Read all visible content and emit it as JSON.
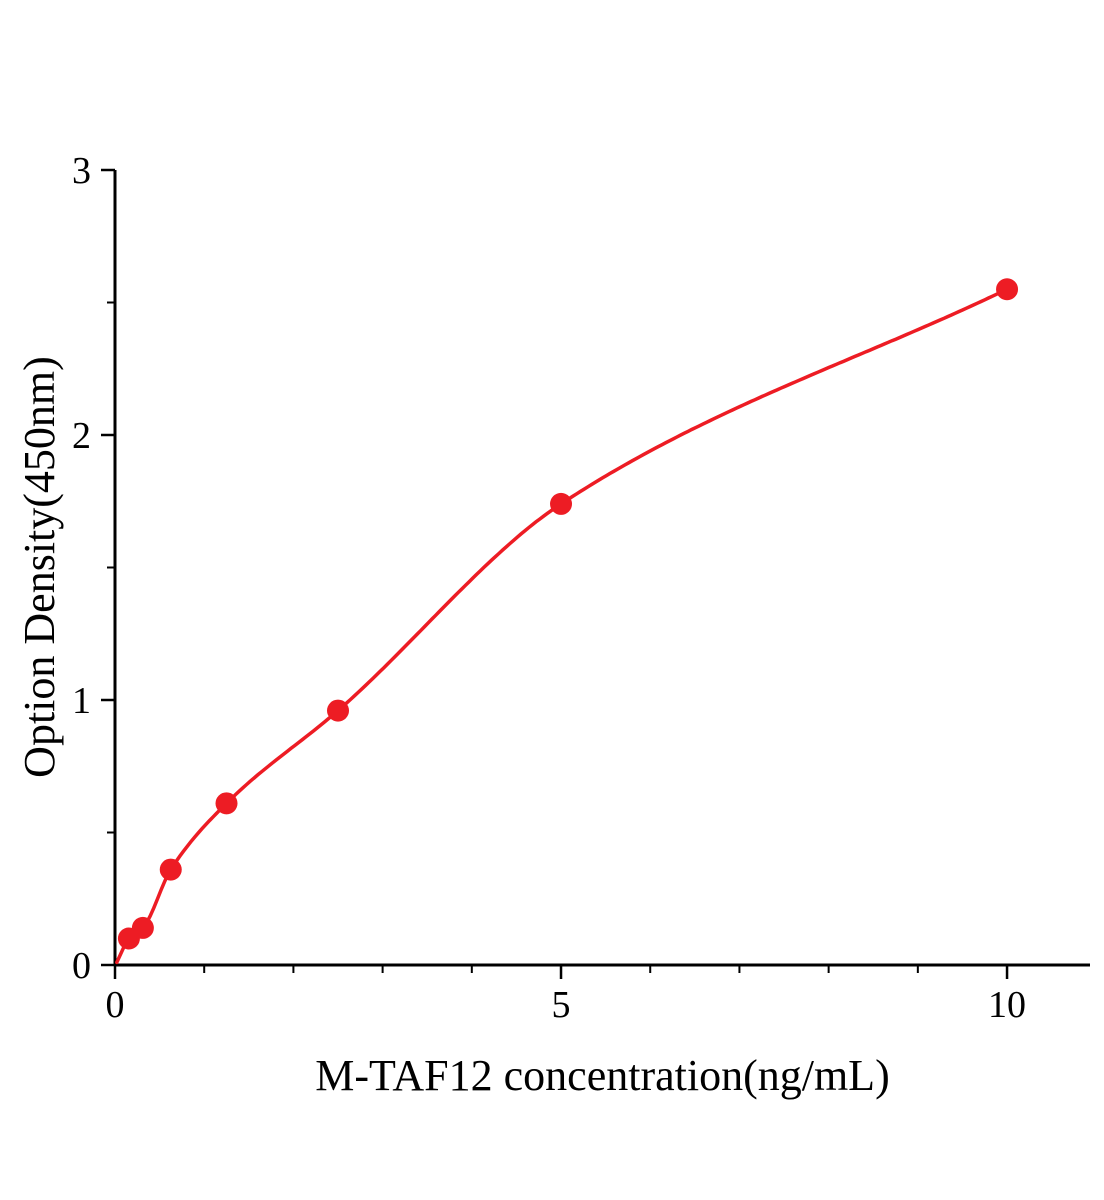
{
  "chart_data": {
    "type": "scatter",
    "title": "",
    "xlabel": "M-TAF12 concentration(ng/mL)",
    "ylabel": "Option Density(450nm)",
    "points": {
      "x": [
        0.156,
        0.3125,
        0.625,
        1.25,
        2.5,
        5,
        10
      ],
      "y": [
        0.1,
        0.14,
        0.36,
        0.61,
        0.96,
        1.74,
        2.55
      ]
    },
    "fit_curve": {
      "style": "smooth-through-points",
      "x_start": 0.02,
      "y_start": 0.01,
      "x_end": 10
    },
    "xlim": [
      0,
      10.93
    ],
    "ylim": [
      0,
      3
    ],
    "x_axis": {
      "major_ticks": [
        0,
        5,
        10
      ],
      "tick_labels": [
        "0",
        "5",
        "10"
      ],
      "minor_step": 1
    },
    "y_axis": {
      "major_ticks": [
        0,
        1,
        2,
        3
      ],
      "tick_labels": [
        "0",
        "1",
        "2",
        "3"
      ],
      "minor_step": 0.5
    },
    "grid": false,
    "legend": "none",
    "colors": {
      "series": "#ed1c24",
      "axis": "#000000",
      "background": "#ffffff"
    }
  }
}
